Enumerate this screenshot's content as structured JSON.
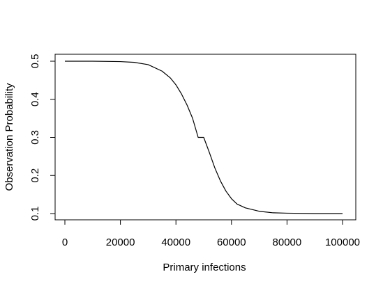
{
  "chart_data": {
    "type": "line",
    "title": "",
    "xlabel": "Primary infections",
    "ylabel": "Observation Probability",
    "xlim": [
      0,
      100000
    ],
    "ylim": [
      0.1,
      0.5
    ],
    "x_ticks": [
      0,
      20000,
      40000,
      60000,
      80000,
      100000
    ],
    "x_tick_labels": [
      "0",
      "20000",
      "40000",
      "60000",
      "80000",
      "100000"
    ],
    "y_ticks": [
      0.1,
      0.2,
      0.3,
      0.4,
      0.5
    ],
    "y_tick_labels": [
      "0.1",
      "0.2",
      "0.3",
      "0.4",
      "0.5"
    ],
    "grid": false,
    "series": [
      {
        "color": "#000000",
        "x": [
          0,
          10000,
          20000,
          25000,
          30000,
          35000,
          38000,
          40000,
          42000,
          44000,
          46000,
          48000,
          50000,
          52000,
          54000,
          56000,
          58000,
          60000,
          62000,
          65000,
          70000,
          75000,
          80000,
          90000,
          100000
        ],
        "y": [
          0.5,
          0.5,
          0.499,
          0.497,
          0.491,
          0.474,
          0.456,
          0.438,
          0.414,
          0.385,
          0.35,
          0.3,
          0.3,
          0.261,
          0.22,
          0.186,
          0.159,
          0.139,
          0.125,
          0.115,
          0.106,
          0.102,
          0.101,
          0.1,
          0.1
        ]
      }
    ]
  }
}
